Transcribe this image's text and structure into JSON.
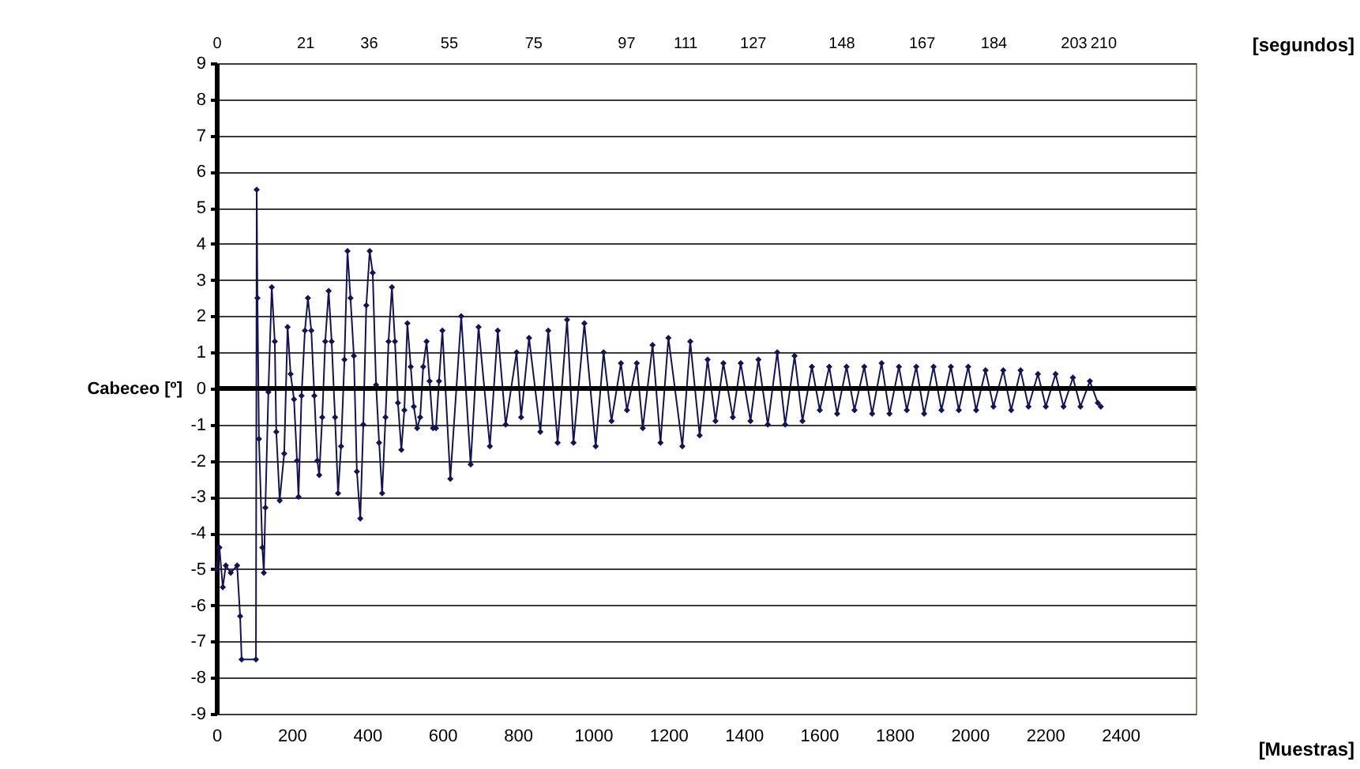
{
  "chart_data": {
    "type": "line",
    "xlabel": "[Muestras]",
    "x2label": "[segundos]",
    "ylabel": "Cabeceo [º]",
    "x": [
      0,
      8,
      17,
      25,
      38,
      55,
      63,
      67,
      105,
      107,
      109,
      113,
      122,
      126,
      130,
      138,
      147,
      155,
      159,
      168,
      180,
      189,
      197,
      206,
      214,
      218,
      226,
      235,
      243,
      252,
      260,
      268,
      273,
      281,
      289,
      298,
      306,
      315,
      323,
      331,
      340,
      348,
      356,
      365,
      373,
      382,
      390,
      398,
      407,
      415,
      424,
      432,
      440,
      449,
      457,
      466,
      474,
      482,
      491,
      499,
      507,
      516,
      524,
      533,
      541,
      549,
      558,
      566,
      575,
      583,
      591,
      600,
      621,
      650,
      675,
      696,
      726,
      747,
      768,
      797,
      809,
      830,
      860,
      881,
      906,
      931,
      948,
      977,
      1007,
      1028,
      1049,
      1074,
      1090,
      1116,
      1132,
      1158,
      1179,
      1200,
      1237,
      1258,
      1283,
      1304,
      1325,
      1346,
      1371,
      1392,
      1418,
      1439,
      1464,
      1489,
      1510,
      1535,
      1556,
      1581,
      1602,
      1627,
      1648,
      1673,
      1694,
      1720,
      1741,
      1766,
      1787,
      1812,
      1833,
      1858,
      1879,
      1904,
      1925,
      1950,
      1971,
      1996,
      2017,
      2042,
      2063,
      2089,
      2110,
      2135,
      2156,
      2181,
      2202,
      2228,
      2249,
      2274,
      2294,
      2319,
      2340,
      2348
    ],
    "series": [
      {
        "color": "#141450",
        "values": [
          -5.0,
          -4.4,
          -5.5,
          -4.9,
          -5.1,
          -4.9,
          -6.3,
          -7.5,
          -7.5,
          5.5,
          2.5,
          -1.4,
          -4.4,
          -5.1,
          -3.3,
          -0.1,
          2.8,
          1.3,
          -1.2,
          -3.1,
          -1.8,
          1.7,
          0.4,
          -0.3,
          -2.0,
          -3.0,
          -0.2,
          1.6,
          2.5,
          1.6,
          -0.2,
          -2.0,
          -2.4,
          -0.8,
          1.3,
          2.7,
          1.3,
          -0.8,
          -2.9,
          -1.6,
          0.8,
          3.8,
          2.5,
          0.9,
          -2.3,
          -3.6,
          -1.0,
          2.3,
          3.8,
          3.2,
          0.1,
          -1.5,
          -2.9,
          -0.8,
          1.3,
          2.8,
          1.3,
          -0.4,
          -1.7,
          -0.6,
          1.8,
          0.6,
          -0.5,
          -1.1,
          -0.8,
          0.6,
          1.3,
          0.2,
          -1.1,
          -1.1,
          0.2,
          1.6,
          -2.5,
          2.0,
          -2.1,
          1.7,
          -1.6,
          1.6,
          -1.0,
          1.0,
          -0.8,
          1.4,
          -1.2,
          1.6,
          -1.5,
          1.9,
          -1.5,
          1.8,
          -1.6,
          1.0,
          -0.9,
          0.7,
          -0.6,
          0.7,
          -1.1,
          1.2,
          -1.5,
          1.4,
          -1.6,
          1.3,
          -1.3,
          0.8,
          -0.9,
          0.7,
          -0.8,
          0.7,
          -0.9,
          0.8,
          -1.0,
          1.0,
          -1.0,
          0.9,
          -0.9,
          0.6,
          -0.6,
          0.6,
          -0.7,
          0.6,
          -0.6,
          0.6,
          -0.7,
          0.7,
          -0.7,
          0.6,
          -0.6,
          0.6,
          -0.7,
          0.6,
          -0.6,
          0.6,
          -0.6,
          0.6,
          -0.6,
          0.5,
          -0.5,
          0.5,
          -0.6,
          0.5,
          -0.5,
          0.4,
          -0.5,
          0.4,
          -0.5,
          0.3,
          -0.5,
          0.2,
          -0.4,
          -0.5
        ]
      }
    ],
    "xlim": [
      0,
      2600
    ],
    "xticks": [
      0,
      200,
      400,
      600,
      800,
      1000,
      1200,
      1400,
      1600,
      1800,
      2000,
      2200,
      2400
    ],
    "x2lim": [
      0,
      232
    ],
    "x2ticks": [
      0,
      21,
      36,
      55,
      75,
      97,
      111,
      127,
      148,
      167,
      184,
      203,
      210
    ],
    "ylim": [
      -9,
      9
    ],
    "yticks": [
      -9,
      -8,
      -7,
      -6,
      -5,
      -4,
      -3,
      -2,
      -1,
      0,
      1,
      2,
      3,
      4,
      5,
      6,
      7,
      8,
      9
    ],
    "grid": "y",
    "marker": "diamond",
    "line_style": "solid",
    "ref_lines": [
      {
        "axis": "y",
        "value": 0,
        "color": "#000000"
      }
    ]
  }
}
